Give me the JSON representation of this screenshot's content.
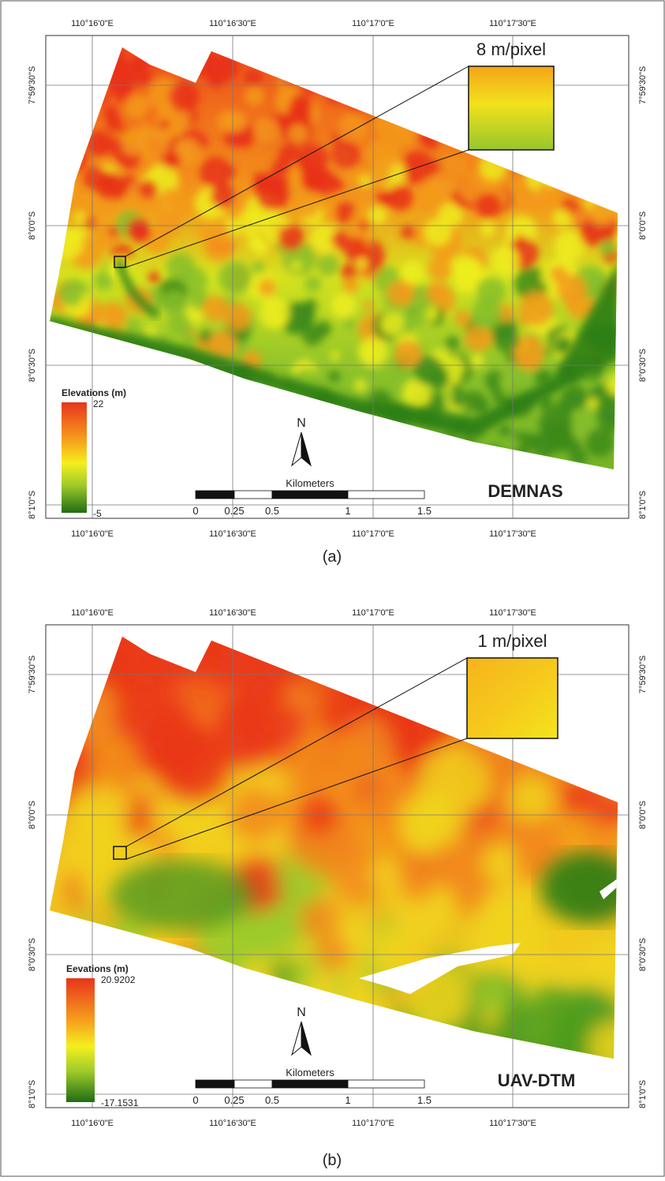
{
  "panels": [
    {
      "caption": "(a)",
      "name": "DEMNAS",
      "inset_label": "8 m/pixel",
      "legend": {
        "title": "Elevations (m)",
        "max": 22,
        "min": -5
      },
      "north": "N",
      "scale": {
        "title": "Kilometers",
        "ticks": [
          0,
          0.25,
          0.5,
          1,
          1.5
        ]
      },
      "lon_labels_top": [
        "110°16'0\"E",
        "110°16'30\"E",
        "110°17'0\"E",
        "110°17'30\"E"
      ],
      "lon_labels_bottom": [
        "110°16'0\"E",
        "110°16'30\"E",
        "110°17'0\"E",
        "110°17'30\"E"
      ],
      "lat_labels_left": [
        "7°59'30\"S",
        "8°0'0\"S",
        "8°0'30\"S",
        "8°1'0\"S"
      ],
      "lat_labels_right": [
        "7°59'30\"S",
        "8°0'0\"S",
        "8°0'30\"S",
        "8°1'0\"S"
      ]
    },
    {
      "caption": "(b)",
      "name": "UAV-DTM",
      "inset_label": "1 m/pixel",
      "legend": {
        "title": "Eevations (m)",
        "max": 20.9202,
        "min": -17.1531
      },
      "north": "N",
      "scale": {
        "title": "Kilometers",
        "ticks": [
          0,
          0.25,
          0.5,
          1,
          1.5
        ]
      },
      "lon_labels_top": [
        "110°16'0\"E",
        "110°16'30\"E",
        "110°17'0\"E",
        "110°17'30\"E"
      ],
      "lon_labels_bottom": [
        "110°16'0\"E",
        "110°16'30\"E",
        "110°17'0\"E",
        "110°17'30\"E"
      ],
      "lat_labels_left": [
        "7°59'30\"S",
        "8°0'0\"S",
        "8°0'30\"S",
        "8°1'0\"S"
      ],
      "lat_labels_right": [
        "7°59'30\"S",
        "8°0'0\"S",
        "8°0'30\"S",
        "8°1'0\"S"
      ]
    }
  ]
}
